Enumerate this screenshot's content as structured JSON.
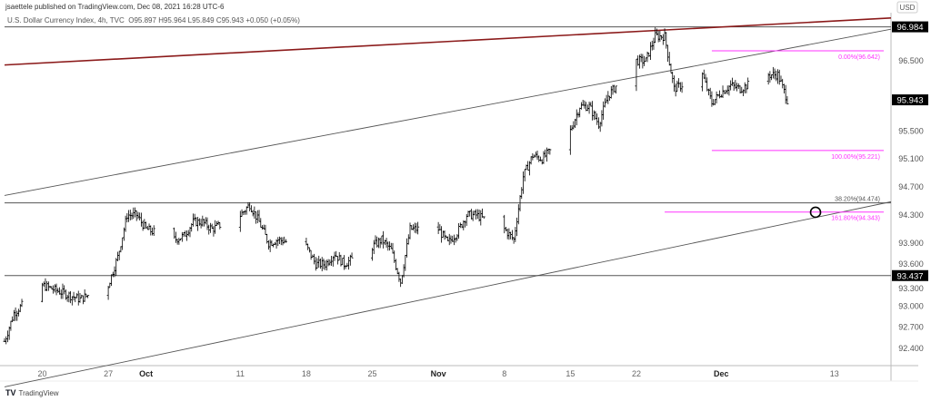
{
  "header": {
    "published": "jsaettele published on TradingView.com, Dec 08, 2021 16:28 UTC-6",
    "symbol": "U.S. Dollar Currency Index, 4h, TVC",
    "open": "O95.897",
    "high": "H95.964",
    "low": "L95.849",
    "close": "C95.943",
    "change": "+0.050 (+0.05%)"
  },
  "footer": {
    "logo": "TradingView",
    "logo_icon": "tradingview-logo-icon"
  },
  "colors": {
    "resistance": "#8b1a1a",
    "fib": "#ff33ff",
    "lines": "#555555",
    "candles": "#000000",
    "label_bg": "#000000"
  },
  "chart_data": {
    "type": "candlestick",
    "title": "",
    "currency": "USD",
    "y_ticks": [
      "96.500",
      "95.500",
      "95.100",
      "94.700",
      "94.300",
      "93.900",
      "93.600",
      "93.300",
      "93.000",
      "92.700",
      "92.400"
    ],
    "ylim": [
      92.2,
      97.2
    ],
    "x_ticks": [
      {
        "date": "2021-09-20",
        "label": "20"
      },
      {
        "date": "2021-09-27",
        "label": "27"
      },
      {
        "date": "2021-10-01",
        "label": "Oct"
      },
      {
        "date": "2021-10-11",
        "label": "11"
      },
      {
        "date": "2021-10-18",
        "label": "18"
      },
      {
        "date": "2021-10-25",
        "label": "25"
      },
      {
        "date": "2021-11-01",
        "label": "Nov"
      },
      {
        "date": "2021-11-08",
        "label": "8"
      },
      {
        "date": "2021-11-15",
        "label": "15"
      },
      {
        "date": "2021-11-22",
        "label": "22"
      },
      {
        "date": "2021-12-01",
        "label": "Dec"
      },
      {
        "date": "2021-12-13",
        "label": "13"
      }
    ],
    "xlim": [
      "2021-09-16",
      "2021-12-19"
    ],
    "closes": [
      [
        "2021-09-16",
        92.5
      ],
      [
        "2021-09-17",
        92.9
      ],
      [
        "2021-09-20",
        93.3
      ],
      [
        "2021-09-22",
        93.2
      ],
      [
        "2021-09-24",
        93.1
      ],
      [
        "2021-09-27",
        93.3
      ],
      [
        "2021-09-28",
        93.7
      ],
      [
        "2021-09-29",
        94.3
      ],
      [
        "2021-09-30",
        94.3
      ],
      [
        "2021-10-01",
        94.1
      ],
      [
        "2021-10-04",
        93.95
      ],
      [
        "2021-10-05",
        94.0
      ],
      [
        "2021-10-06",
        94.2
      ],
      [
        "2021-10-07",
        94.2
      ],
      [
        "2021-10-08",
        94.1
      ],
      [
        "2021-10-11",
        94.3
      ],
      [
        "2021-10-12",
        94.45
      ],
      [
        "2021-10-13",
        94.2
      ],
      [
        "2021-10-14",
        93.9
      ],
      [
        "2021-10-15",
        93.95
      ],
      [
        "2021-10-18",
        93.85
      ],
      [
        "2021-10-19",
        93.6
      ],
      [
        "2021-10-20",
        93.6
      ],
      [
        "2021-10-21",
        93.75
      ],
      [
        "2021-10-22",
        93.6
      ],
      [
        "2021-10-25",
        93.85
      ],
      [
        "2021-10-26",
        93.95
      ],
      [
        "2021-10-27",
        93.8
      ],
      [
        "2021-10-28",
        93.35
      ],
      [
        "2021-10-29",
        94.1
      ],
      [
        "2021-11-01",
        94.1
      ],
      [
        "2021-11-02",
        93.9
      ],
      [
        "2021-11-03",
        94.05
      ],
      [
        "2021-11-04",
        94.3
      ],
      [
        "2021-11-05",
        94.3
      ],
      [
        "2021-11-08",
        94.1
      ],
      [
        "2021-11-09",
        93.95
      ],
      [
        "2021-11-10",
        94.85
      ],
      [
        "2021-11-11",
        95.15
      ],
      [
        "2021-11-12",
        95.1
      ],
      [
        "2021-11-15",
        95.5
      ],
      [
        "2021-11-16",
        95.85
      ],
      [
        "2021-11-17",
        95.85
      ],
      [
        "2021-11-18",
        95.6
      ],
      [
        "2021-11-19",
        96.0
      ],
      [
        "2021-11-22",
        96.5
      ],
      [
        "2021-11-23",
        96.5
      ],
      [
        "2021-11-24",
        96.85
      ],
      [
        "2021-11-25",
        96.85
      ],
      [
        "2021-11-26",
        96.1
      ],
      [
        "2021-11-29",
        96.3
      ],
      [
        "2021-11-30",
        95.9
      ],
      [
        "2021-12-01",
        96.05
      ],
      [
        "2021-12-02",
        96.15
      ],
      [
        "2021-12-03",
        96.1
      ],
      [
        "2021-12-06",
        96.3
      ],
      [
        "2021-12-07",
        96.3
      ],
      [
        "2021-12-08",
        95.943
      ]
    ],
    "price_labels": [
      {
        "price": 96.984,
        "label": "96.984"
      },
      {
        "price": 95.943,
        "label": "95.943"
      },
      {
        "price": 93.437,
        "label": "93.437"
      }
    ],
    "horizontal_lines": [
      96.984,
      94.474,
      93.437
    ],
    "trend_lines": [
      {
        "role": "resistance",
        "color": "#8b1a1a",
        "from": [
          "2021-09-16",
          96.44
        ],
        "to": [
          "2021-12-19",
          97.11
        ]
      },
      {
        "role": "upper-channel",
        "color": "#555555",
        "from": [
          "2021-09-16",
          94.58
        ],
        "to": [
          "2021-12-19",
          96.95
        ]
      },
      {
        "role": "lower-channel",
        "color": "#555555",
        "from": [
          "2021-09-16",
          91.85
        ],
        "to": [
          "2021-12-19",
          94.49
        ]
      }
    ],
    "fib_levels": [
      {
        "label": "0.00%(96.642)",
        "price": 96.642,
        "color": "#ff33ff",
        "from": "2021-11-30"
      },
      {
        "label": "100.00%(95.221)",
        "price": 95.221,
        "color": "#ff33ff",
        "from": "2021-11-30"
      },
      {
        "label": "38.20%(94.474)",
        "price": 94.474,
        "color": "#555555",
        "from": "2021-12-13"
      },
      {
        "label": "161.80%(94.343)",
        "price": 94.343,
        "color": "#ff33ff",
        "from": "2021-11-25"
      }
    ],
    "marker": {
      "type": "circle",
      "date": "2021-12-11",
      "price": 94.34
    }
  }
}
